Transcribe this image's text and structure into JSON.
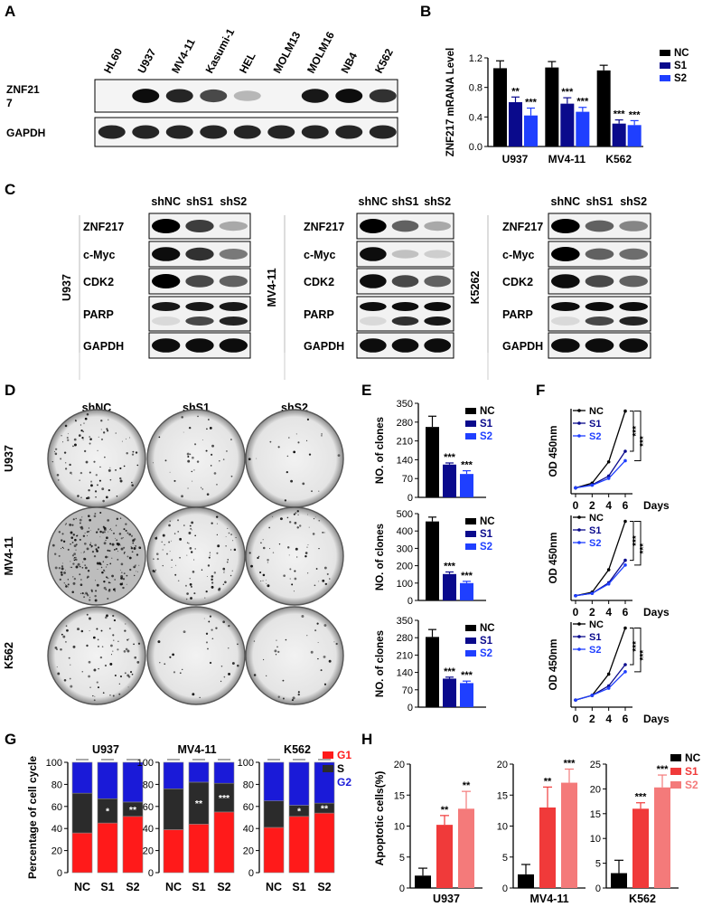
{
  "panels": {
    "A": "A",
    "B": "B",
    "C": "C",
    "D": "D",
    "E": "E",
    "F": "F",
    "G": "G",
    "H": "H"
  },
  "colors": {
    "nc": "#000000",
    "s1": "#0a0a8c",
    "s2": "#1f3fff",
    "g1": "#ff1a1a",
    "s_phase": "#2b2b2b",
    "g2": "#1a1ad8",
    "h_nc": "#000000",
    "h_s1": "#f03a3a",
    "h_s2": "#f47a7a"
  },
  "panelA": {
    "lanes": [
      "HL60",
      "U937",
      "MV4-11",
      "Kasumi-1",
      "HEL",
      "MOLM13",
      "MOLM16",
      "NB4",
      "K562"
    ],
    "rows": [
      "ZNF21\n7",
      "GAPDH"
    ],
    "znf217_intensity": [
      0.05,
      0.95,
      0.85,
      0.7,
      0.25,
      0.05,
      0.9,
      0.95,
      0.8
    ]
  },
  "chart_data": [
    {
      "panel": "B",
      "type": "bar",
      "categories": [
        "U937",
        "MV4-11",
        "K562"
      ],
      "series": [
        {
          "name": "NC",
          "values": [
            1.06,
            1.07,
            1.03
          ],
          "err": [
            0.1,
            0.08,
            0.07
          ]
        },
        {
          "name": "S1",
          "values": [
            0.6,
            0.58,
            0.31
          ],
          "err": [
            0.07,
            0.08,
            0.05
          ]
        },
        {
          "name": "S2",
          "values": [
            0.42,
            0.47,
            0.29
          ],
          "err": [
            0.1,
            0.06,
            0.06
          ]
        }
      ],
      "sig": [
        [
          "",
          "**",
          "***"
        ],
        [
          "",
          "***",
          "***"
        ],
        [
          "",
          "***",
          "***"
        ]
      ],
      "ylabel": "ZNF217 mRANA Level",
      "ylim": [
        0,
        1.2
      ],
      "yticks": [
        "0.0",
        "0.4",
        "0.8",
        "1.2"
      ],
      "legend": "top-right"
    },
    {
      "panel": "E",
      "type": "bar",
      "categories": [
        "U937"
      ],
      "series": [
        {
          "name": "NC",
          "values": [
            262
          ],
          "err": [
            40
          ]
        },
        {
          "name": "S1",
          "values": [
            122
          ],
          "err": [
            6
          ]
        },
        {
          "name": "S2",
          "values": [
            87
          ],
          "err": [
            12
          ]
        }
      ],
      "sig": [
        "",
        "***",
        "***"
      ],
      "ylabel": "NO. of clones",
      "ylim": [
        0,
        350
      ],
      "yticks": [
        "0",
        "70",
        "140",
        "210",
        "280",
        "350"
      ]
    },
    {
      "panel": "E",
      "type": "bar",
      "categories": [
        "MV4-11"
      ],
      "series": [
        {
          "name": "NC",
          "values": [
            455
          ],
          "err": [
            25
          ]
        },
        {
          "name": "S1",
          "values": [
            152
          ],
          "err": [
            12
          ]
        },
        {
          "name": "S2",
          "values": [
            100
          ],
          "err": [
            10
          ]
        }
      ],
      "sig": [
        "",
        "***",
        "***"
      ],
      "ylabel": "NO. of clones",
      "ylim": [
        0,
        500
      ],
      "yticks": [
        "0",
        "100",
        "200",
        "300",
        "400",
        "500"
      ]
    },
    {
      "panel": "E",
      "type": "bar",
      "categories": [
        "K562"
      ],
      "series": [
        {
          "name": "NC",
          "values": [
            283
          ],
          "err": [
            30
          ]
        },
        {
          "name": "S1",
          "values": [
            115
          ],
          "err": [
            6
          ]
        },
        {
          "name": "S2",
          "values": [
            97
          ],
          "err": [
            8
          ]
        }
      ],
      "sig": [
        "",
        "***",
        "***"
      ],
      "ylabel": "NO. of clones",
      "ylim": [
        0,
        350
      ],
      "yticks": [
        "0",
        "70",
        "140",
        "210",
        "280",
        "350"
      ]
    },
    {
      "panel": "F",
      "type": "line",
      "x": [
        0,
        2,
        4,
        6
      ],
      "xlabel": "Days",
      "ylabel": "OD 450nm",
      "ylim": [
        0,
        3.6
      ],
      "series": [
        {
          "name": "NC",
          "values": [
            0.25,
            0.45,
            1.35,
            3.5
          ]
        },
        {
          "name": "S1",
          "values": [
            0.25,
            0.38,
            0.75,
            1.8
          ]
        },
        {
          "name": "S2",
          "values": [
            0.25,
            0.36,
            0.65,
            1.4
          ]
        }
      ],
      "sig": [
        "***",
        "***"
      ]
    },
    {
      "panel": "F",
      "type": "line",
      "x": [
        0,
        2,
        4,
        6
      ],
      "xlabel": "Days",
      "ylabel": "OD 450nm",
      "ylim": [
        0,
        3.6
      ],
      "series": [
        {
          "name": "NC",
          "values": [
            0.2,
            0.35,
            1.3,
            3.35
          ]
        },
        {
          "name": "S1",
          "values": [
            0.2,
            0.3,
            0.75,
            1.7
          ]
        },
        {
          "name": "S2",
          "values": [
            0.2,
            0.3,
            0.7,
            1.5
          ]
        }
      ],
      "sig": [
        "***",
        "***"
      ]
    },
    {
      "panel": "F",
      "type": "line",
      "x": [
        0,
        2,
        4,
        6
      ],
      "xlabel": "Days",
      "ylabel": "OD 450nm",
      "ylim": [
        0,
        3.6
      ],
      "series": [
        {
          "name": "NC",
          "values": [
            0.3,
            0.5,
            1.4,
            3.35
          ]
        },
        {
          "name": "S1",
          "values": [
            0.3,
            0.5,
            0.9,
            1.8
          ]
        },
        {
          "name": "S2",
          "values": [
            0.3,
            0.5,
            0.8,
            1.5
          ]
        }
      ],
      "sig": [
        "***",
        "***"
      ]
    },
    {
      "panel": "G",
      "type": "bar",
      "stacked": true,
      "title": "U937",
      "categories": [
        "NC",
        "S1",
        "S2"
      ],
      "series": [
        {
          "name": "G1",
          "values": [
            36,
            45,
            51
          ]
        },
        {
          "name": "S",
          "values": [
            36,
            22,
            13
          ]
        },
        {
          "name": "G2",
          "values": [
            28,
            33,
            36
          ]
        }
      ],
      "sig": [
        "",
        "*",
        "**"
      ],
      "ylabel": "Percentage of cell cycle",
      "ylim": [
        0,
        100
      ],
      "yticks": [
        "0",
        "20",
        "40",
        "60",
        "80",
        "100"
      ]
    },
    {
      "panel": "G",
      "type": "bar",
      "stacked": true,
      "title": "MV4-11",
      "categories": [
        "NC",
        "S1",
        "S2"
      ],
      "series": [
        {
          "name": "G1",
          "values": [
            39,
            44,
            55
          ]
        },
        {
          "name": "S",
          "values": [
            37,
            38,
            26
          ]
        },
        {
          "name": "G2",
          "values": [
            24,
            18,
            19
          ]
        }
      ],
      "sig": [
        "",
        "**",
        "***"
      ],
      "ylim": [
        0,
        100
      ],
      "yticks": [
        "0",
        "20",
        "40",
        "60",
        "80",
        "100"
      ]
    },
    {
      "panel": "G",
      "type": "bar",
      "stacked": true,
      "title": "K562",
      "categories": [
        "NC",
        "S1",
        "S2"
      ],
      "series": [
        {
          "name": "G1",
          "values": [
            41,
            51,
            54
          ]
        },
        {
          "name": "S",
          "values": [
            24,
            10,
            9
          ]
        },
        {
          "name": "G2",
          "values": [
            35,
            39,
            37
          ]
        }
      ],
      "sig": [
        "",
        "*",
        "**"
      ],
      "ylim": [
        0,
        100
      ],
      "yticks": [
        "0",
        "20",
        "40",
        "60",
        "80",
        "100"
      ],
      "legend": "top-right"
    },
    {
      "panel": "H",
      "type": "bar",
      "title": "",
      "xlabel": "U937",
      "series": [
        {
          "name": "NC",
          "values": [
            2
          ],
          "err": [
            1.2
          ]
        },
        {
          "name": "S1",
          "values": [
            10.2
          ],
          "err": [
            1.5
          ]
        },
        {
          "name": "S2",
          "values": [
            12.8
          ],
          "err": [
            2.8
          ]
        }
      ],
      "sig": [
        "",
        "**",
        "**"
      ],
      "ylabel": "Apoptotic cells(%)",
      "ylim": [
        0,
        20
      ],
      "yticks": [
        "0",
        "5",
        "10",
        "15",
        "20"
      ]
    },
    {
      "panel": "H",
      "type": "bar",
      "xlabel": "MV4-11",
      "series": [
        {
          "name": "NC",
          "values": [
            2.2
          ],
          "err": [
            1.6
          ]
        },
        {
          "name": "S1",
          "values": [
            13
          ],
          "err": [
            3.3
          ]
        },
        {
          "name": "S2",
          "values": [
            17
          ],
          "err": [
            2.2
          ]
        }
      ],
      "sig": [
        "",
        "**",
        "***"
      ],
      "ylim": [
        0,
        20
      ],
      "yticks": [
        "0",
        "5",
        "10",
        "15",
        "20"
      ]
    },
    {
      "panel": "H",
      "type": "bar",
      "xlabel": "K562",
      "series": [
        {
          "name": "NC",
          "values": [
            3
          ],
          "err": [
            2.6
          ]
        },
        {
          "name": "S1",
          "values": [
            16
          ],
          "err": [
            1.2
          ]
        },
        {
          "name": "S2",
          "values": [
            20.3
          ],
          "err": [
            2.5
          ]
        }
      ],
      "sig": [
        "",
        "***",
        "***"
      ],
      "ylim": [
        0,
        25
      ],
      "yticks": [
        "0",
        "5",
        "10",
        "15",
        "20",
        "25"
      ],
      "legend": "top-right"
    }
  ],
  "panelC": {
    "lanes": [
      "shNC",
      "shS1",
      "shS2"
    ],
    "blocks": [
      {
        "cell": "U937",
        "rows": [
          "ZNF217",
          "c-Myc",
          "CDK2",
          "PARP",
          "GAPDH"
        ]
      },
      {
        "cell": "MV4-11",
        "rows": [
          "ZNF217",
          "c-Myc",
          "CDK2",
          "PARP",
          "GAPDH"
        ]
      },
      {
        "cell": "K5262",
        "rows": [
          "ZNF217",
          "c-Myc",
          "CDK2",
          "PARP",
          "GAPDH"
        ]
      }
    ]
  },
  "panelD": {
    "columns": [
      "shNC",
      "shS1",
      "shS2"
    ],
    "rows": [
      "U937",
      "MV4-11",
      "K562"
    ],
    "density": [
      [
        0.35,
        0.15,
        0.08
      ],
      [
        0.95,
        0.35,
        0.25
      ],
      [
        0.3,
        0.12,
        0.12
      ]
    ]
  },
  "legend_labels": {
    "nc": "NC",
    "s1": "S1",
    "s2": "S2",
    "g1": "G1",
    "s": "S",
    "g2": "G2"
  }
}
